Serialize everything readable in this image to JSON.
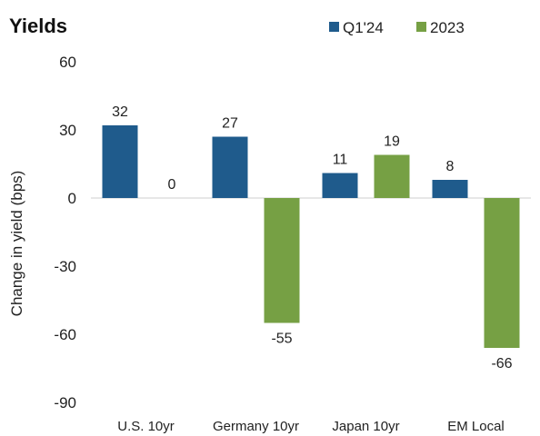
{
  "chart_data": {
    "type": "bar",
    "title": "Yields",
    "ylabel": "Change in yield (bps)",
    "xlabel": "",
    "categories": [
      "U.S. 10yr",
      "Germany 10yr",
      "Japan 10yr",
      "EM Local"
    ],
    "series": [
      {
        "name": "Q1'24",
        "values": [
          32,
          27,
          11,
          8
        ],
        "color": "#1f5b8c"
      },
      {
        "name": "2023",
        "values": [
          0,
          -55,
          19,
          -66
        ],
        "color": "#76a044"
      }
    ],
    "ylim": [
      -90,
      60
    ],
    "yticks": [
      "60",
      "30",
      "0",
      "-30",
      "-60",
      "-90"
    ],
    "ytick_values": [
      60,
      30,
      0,
      -30,
      -60,
      -90
    ],
    "grid": false,
    "legend": "top-right"
  }
}
